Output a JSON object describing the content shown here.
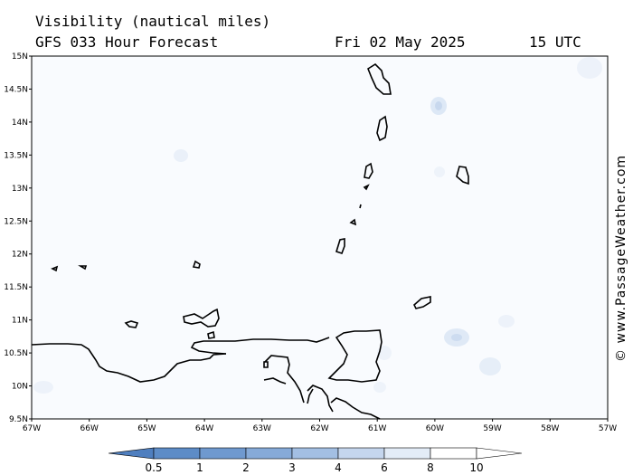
{
  "header": {
    "title": "Visibility (nautical miles)",
    "subtitle": "GFS 033 Hour Forecast",
    "date": "Fri 02 May 2025",
    "time": "15 UTC"
  },
  "axes": {
    "lat_labels": [
      "15N",
      "14.5N",
      "14N",
      "13.5N",
      "13N",
      "12.5N",
      "12N",
      "11.5N",
      "11N",
      "10.5N",
      "10N",
      "9.5N"
    ],
    "lon_labels": [
      "67W",
      "66W",
      "65W",
      "64W",
      "63W",
      "62W",
      "61W",
      "60W",
      "59W",
      "58W",
      "57W"
    ]
  },
  "legend": {
    "labels": [
      "0.5",
      "1",
      "2",
      "3",
      "4",
      "6",
      "8",
      "10"
    ],
    "colors": [
      "#4f7fbf",
      "#5d8cc7",
      "#6f99cf",
      "#86aad8",
      "#a3bfe3",
      "#c5d6ee",
      "#e3ecf7",
      "#ffffff"
    ]
  },
  "credit": "© www.PassageWeather.com"
}
